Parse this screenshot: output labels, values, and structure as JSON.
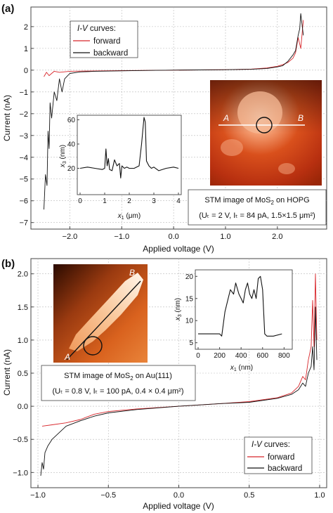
{
  "chart_data": [
    {
      "type": "line",
      "panel_label": "(a)",
      "xlabel": "Applied voltage (V)",
      "ylabel": "Current (nA)",
      "xlim": [
        -2.75,
        2.95
      ],
      "ylim": [
        -7.3,
        2.9
      ],
      "xticks": [
        -2.0,
        -1.0,
        0.0,
        1.0,
        2.0
      ],
      "xtick_labels": [
        "−2.0",
        "−1.0",
        "0.0",
        "1.0",
        "2.0"
      ],
      "yticks": [
        -7,
        -6,
        -5,
        -4,
        -3,
        -2,
        -1,
        0,
        1,
        2
      ],
      "ytick_labels": [
        "−7",
        "−6",
        "−5",
        "−4",
        "−3",
        "−2",
        "−1",
        "0",
        "1",
        "2"
      ],
      "grid": true,
      "legend": {
        "title_italic": "I-V",
        "title_rest": " curves:",
        "position": "top-left",
        "entries": [
          "forward",
          "backward"
        ]
      },
      "series": [
        {
          "name": "forward",
          "color": "#d8262b",
          "x": [
            -2.5,
            -2.45,
            -2.4,
            -2.35,
            -2.3,
            -2.2,
            -2.0,
            -1.7,
            -1.4,
            -1.0,
            -0.5,
            0.0,
            0.5,
            1.0,
            1.5,
            1.8,
            2.0,
            2.1,
            2.2,
            2.3,
            2.35,
            2.4,
            2.45,
            2.5
          ],
          "values": [
            -0.3,
            -0.1,
            -0.25,
            -0.15,
            -0.05,
            -0.1,
            -0.05,
            -0.04,
            -0.03,
            -0.02,
            -0.01,
            0.0,
            0.01,
            0.02,
            0.05,
            0.1,
            0.18,
            0.25,
            0.35,
            0.55,
            0.8,
            1.5,
            1.0,
            2.3
          ]
        },
        {
          "name": "backward",
          "color": "#111111",
          "x": [
            -2.5,
            -2.47,
            -2.44,
            -2.42,
            -2.4,
            -2.38,
            -2.35,
            -2.3,
            -2.25,
            -2.2,
            -2.15,
            -2.1,
            -2.0,
            -1.8,
            -1.5,
            -1.0,
            -0.5,
            0.0,
            0.5,
            1.0,
            1.5,
            1.8,
            2.0,
            2.1,
            2.2,
            2.3,
            2.35,
            2.4,
            2.43,
            2.45,
            2.5
          ],
          "values": [
            -6.4,
            -4.8,
            -5.3,
            -2.8,
            -3.6,
            -1.5,
            -2.2,
            -1.0,
            -1.4,
            -0.4,
            -1.0,
            -0.4,
            -0.15,
            -0.08,
            -0.05,
            -0.03,
            -0.01,
            0.0,
            0.01,
            0.02,
            0.04,
            0.08,
            0.15,
            0.2,
            0.4,
            0.7,
            0.9,
            1.6,
            1.9,
            2.6,
            1.6
          ]
        }
      ],
      "inset_profile": {
        "type": "line",
        "xlabel_var": "x",
        "xlabel_sub": "1",
        "xlabel_unit": " (μm)",
        "ylabel_var": "x",
        "ylabel_sub": "3",
        "ylabel_unit": " (nm)",
        "xlim": [
          0,
          4
        ],
        "ylim": [
          0,
          62
        ],
        "xticks": [
          0,
          1,
          2,
          3,
          4
        ],
        "xtick_labels": [
          "0",
          "1",
          "2",
          "3",
          "4"
        ],
        "yticks": [
          20,
          40,
          60
        ],
        "ytick_labels": [
          "20",
          "40",
          "60"
        ],
        "x": [
          0.0,
          0.3,
          0.6,
          0.9,
          1.0,
          1.05,
          1.1,
          1.15,
          1.2,
          1.3,
          1.4,
          1.5,
          1.6,
          1.65,
          1.7,
          1.8,
          1.9,
          2.0,
          2.2,
          2.4,
          2.5,
          2.6,
          2.65,
          2.7,
          2.8,
          2.9,
          3.0,
          3.2,
          3.5,
          3.8,
          4.0
        ],
        "values": [
          20,
          21,
          20,
          19,
          20,
          36,
          22,
          28,
          19,
          18,
          27,
          22,
          24,
          12,
          22,
          20,
          21,
          20,
          20,
          22,
          40,
          62,
          58,
          26,
          22,
          20,
          21,
          18,
          20,
          21,
          20
        ]
      },
      "stm_image": {
        "caption_line1": "STM image of MoS",
        "caption_line1_sub": "2",
        "caption_line1_rest": " on HOPG",
        "caption_line2": "(Uₜ = 2 V, Iₜ = 84 pA, 1.5×1.5 μm²)",
        "marker_a": "A",
        "marker_b": "B"
      }
    },
    {
      "type": "line",
      "panel_label": "(b)",
      "xlabel": "Applied voltage (V)",
      "ylabel": "Current (nA)",
      "xlim": [
        -1.05,
        1.05
      ],
      "ylim": [
        -1.23,
        2.23
      ],
      "xticks": [
        -1.0,
        -0.5,
        0.0,
        0.5,
        1.0
      ],
      "xtick_labels": [
        "−1.0",
        "−0.5",
        "0.0",
        "0.5",
        "1.0"
      ],
      "yticks": [
        -1.0,
        -0.5,
        0.0,
        0.5,
        1.0,
        1.5,
        2.0
      ],
      "ytick_labels": [
        "−1.0",
        "−0.5",
        "0.0",
        "0.5",
        "1.0",
        "1.5",
        "2.0"
      ],
      "grid": true,
      "legend": {
        "title_italic": "I-V",
        "title_rest": " curves:",
        "position": "bottom-right",
        "entries": [
          "forward",
          "backward"
        ]
      },
      "series": [
        {
          "name": "forward",
          "color": "#d8262b",
          "x": [
            -0.97,
            -0.9,
            -0.8,
            -0.7,
            -0.6,
            -0.5,
            -0.3,
            0.0,
            0.3,
            0.5,
            0.7,
            0.8,
            0.85,
            0.88,
            0.9,
            0.92,
            0.94,
            0.95,
            0.96,
            0.97,
            0.98
          ],
          "values": [
            -0.3,
            -0.28,
            -0.25,
            -0.2,
            -0.12,
            -0.08,
            -0.04,
            0.0,
            0.04,
            0.07,
            0.13,
            0.2,
            0.3,
            0.45,
            0.4,
            0.7,
            0.9,
            1.6,
            0.9,
            2.0,
            1.0
          ]
        },
        {
          "name": "backward",
          "color": "#111111",
          "x": [
            -0.98,
            -0.97,
            -0.96,
            -0.95,
            -0.93,
            -0.9,
            -0.85,
            -0.8,
            -0.7,
            -0.6,
            -0.5,
            -0.3,
            0.0,
            0.3,
            0.5,
            0.7,
            0.8,
            0.85,
            0.88,
            0.9,
            0.92,
            0.94,
            0.95,
            0.96,
            0.97,
            0.98
          ],
          "values": [
            -1.05,
            -0.85,
            -0.95,
            -0.7,
            -0.6,
            -0.5,
            -0.4,
            -0.3,
            -0.22,
            -0.15,
            -0.1,
            -0.05,
            0.0,
            0.04,
            0.06,
            0.12,
            0.18,
            0.25,
            0.35,
            0.3,
            0.5,
            0.6,
            0.9,
            0.55,
            1.5,
            0.7
          ]
        }
      ],
      "inset_profile": {
        "type": "line",
        "xlabel_var": "x",
        "xlabel_sub": "1",
        "xlabel_unit": " (nm)",
        "ylabel_var": "x",
        "ylabel_sub": "3",
        "ylabel_unit": " (nm)",
        "xlim": [
          0,
          850
        ],
        "ylim": [
          4,
          21
        ],
        "xticks": [
          0,
          200,
          400,
          600,
          800
        ],
        "xtick_labels": [
          "0",
          "200",
          "400",
          "600",
          "800"
        ],
        "yticks": [
          5,
          10,
          15,
          20
        ],
        "ytick_labels": [
          "5",
          "10",
          "15",
          "20"
        ],
        "x": [
          0,
          100,
          200,
          220,
          250,
          280,
          300,
          330,
          350,
          380,
          400,
          420,
          440,
          460,
          480,
          500,
          520,
          540,
          560,
          580,
          600,
          610,
          620,
          640,
          700,
          780
        ],
        "values": [
          7,
          7,
          7,
          6.5,
          12,
          15,
          17,
          16,
          18.5,
          16,
          15,
          14,
          17,
          18.5,
          16,
          15,
          17,
          15,
          19.5,
          20,
          17,
          12,
          7,
          6.5,
          6.5,
          7
        ]
      },
      "stm_image": {
        "caption_line1": "STM image of MoS",
        "caption_line1_sub": "2",
        "caption_line1_rest": " on Au(111)",
        "caption_line2": "(Uₜ = 0.8 V, Iₜ = 100 pA, 0.4 × 0.4 μm²)",
        "marker_a": "A",
        "marker_b": "B"
      }
    }
  ]
}
